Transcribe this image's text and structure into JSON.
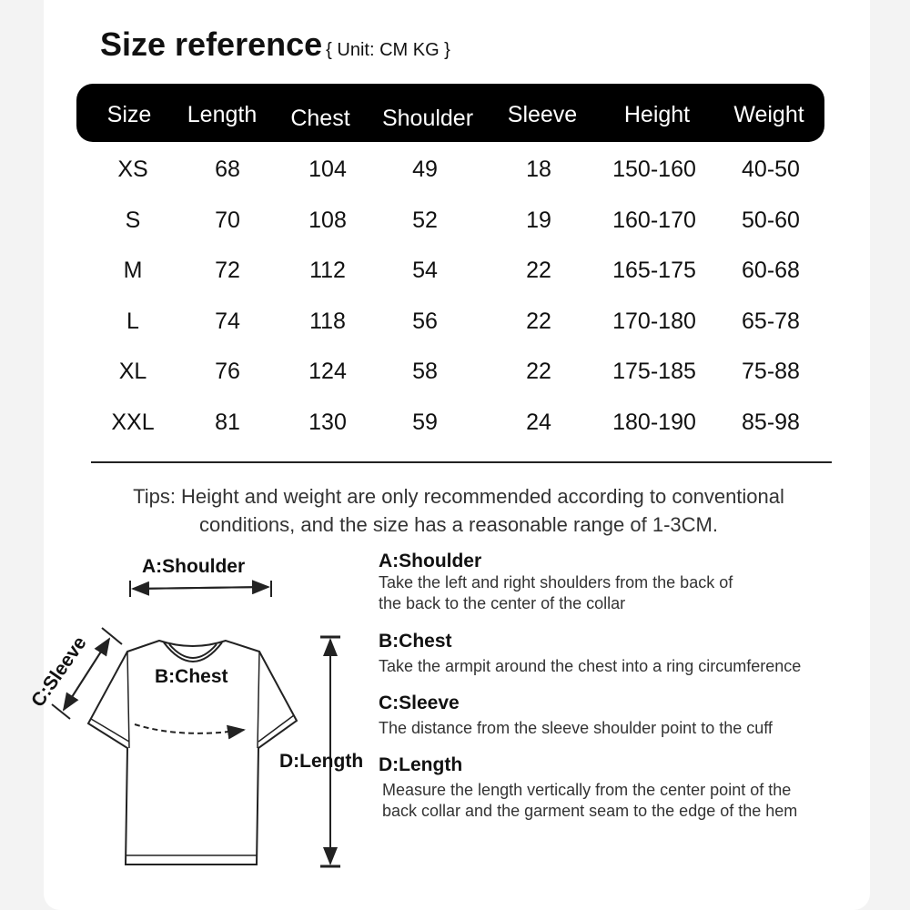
{
  "title": "Size reference",
  "unit": "{ Unit: CM KG }",
  "columns": [
    "Size",
    "Length",
    "Chest",
    "Shoulder",
    "Sleeve",
    "Height",
    "Weight"
  ],
  "rows": [
    [
      "XS",
      "68",
      "104",
      "49",
      "18",
      "150-160",
      "40-50"
    ],
    [
      "S",
      "70",
      "108",
      "52",
      "19",
      "160-170",
      "50-60"
    ],
    [
      "M",
      "72",
      "112",
      "54",
      "22",
      "165-175",
      "60-68"
    ],
    [
      "L",
      "74",
      "118",
      "56",
      "22",
      "170-180",
      "65-78"
    ],
    [
      "XL",
      "76",
      "124",
      "58",
      "22",
      "175-185",
      "75-88"
    ],
    [
      "XXL",
      "81",
      "130",
      "59",
      "24",
      "180-190",
      "85-98"
    ]
  ],
  "tips": [
    "Tips: Height and weight are only recommended according to conventional",
    "conditions, and the size has a reasonable range of 1-3CM."
  ],
  "diagram": {
    "shoulder": "A:Shoulder",
    "chest": "B:Chest",
    "sleeve": "C:Sleeve",
    "length": "D:Length"
  },
  "definitions": [
    {
      "title": "A:Shoulder",
      "lines": [
        "Take the left and right shoulders from the back of",
        "the back to the center of the collar"
      ]
    },
    {
      "title": "B:Chest",
      "lines": [
        "Take the armpit around the chest into a ring circumference"
      ]
    },
    {
      "title": "C:Sleeve",
      "lines": [
        "The distance from the sleeve shoulder point to the cuff"
      ]
    },
    {
      "title": "D:Length",
      "lines": [
        "Measure the length vertically from the center point of the",
        "back collar and the garment seam to the edge of the hem"
      ]
    }
  ]
}
